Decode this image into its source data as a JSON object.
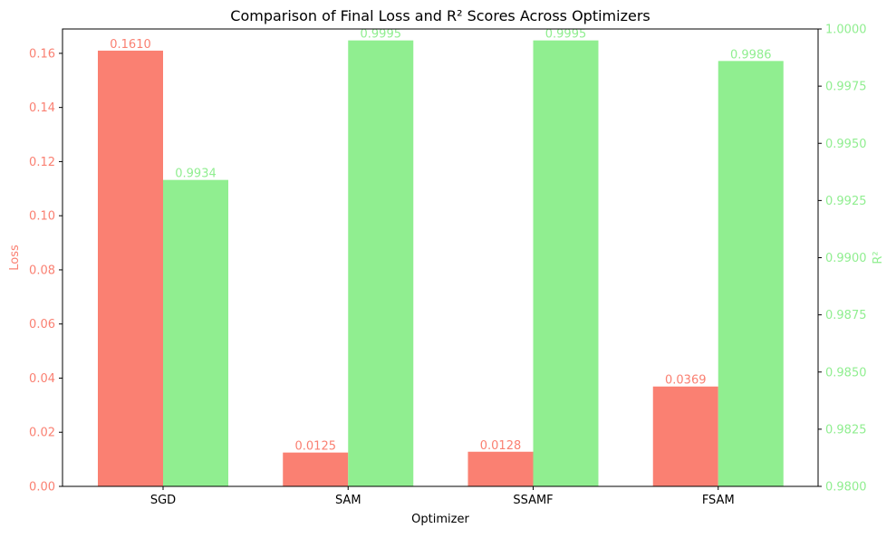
{
  "chart_data": {
    "type": "bar",
    "title": "Comparison of Final Loss and R² Scores Across Optimizers",
    "xlabel": "Optimizer",
    "categories": [
      "SGD",
      "SAM",
      "SSAMF",
      "FSAM"
    ],
    "series": [
      {
        "name": "",
        "axis": "left",
        "color": "#fa8072",
        "values": [
          0.161,
          0.0125,
          0.0128,
          0.0369
        ],
        "labels": [
          "0.1610",
          "0.0125",
          "0.0128",
          "0.0369"
        ]
      },
      {
        "name": "",
        "axis": "right",
        "color": "#90ee90",
        "values": [
          0.9934,
          0.9995,
          0.9995,
          0.9986
        ],
        "labels": [
          "0.9934",
          "0.9995",
          "0.9995",
          "0.9986"
        ]
      }
    ],
    "y_left": {
      "label": "Loss",
      "color": "#fa8072",
      "ylim": [
        0,
        0.169
      ],
      "ticks": [
        0.0,
        0.02,
        0.04,
        0.06,
        0.08,
        0.1,
        0.12,
        0.14,
        0.16
      ],
      "tick_labels": [
        "0.00",
        "0.02",
        "0.04",
        "0.06",
        "0.08",
        "0.10",
        "0.12",
        "0.14",
        "0.16"
      ]
    },
    "y_right": {
      "label": "R²",
      "color": "#90ee90",
      "ylim": [
        0.98,
        1.0
      ],
      "ticks": [
        0.98,
        0.9825,
        0.985,
        0.9875,
        0.99,
        0.9925,
        0.995,
        0.9975,
        1.0
      ],
      "tick_labels": [
        "0.9800",
        "0.9825",
        "0.9850",
        "0.9875",
        "0.9900",
        "0.9925",
        "0.9950",
        "0.9975",
        "1.0000"
      ]
    },
    "grid": false,
    "legend": "none"
  }
}
